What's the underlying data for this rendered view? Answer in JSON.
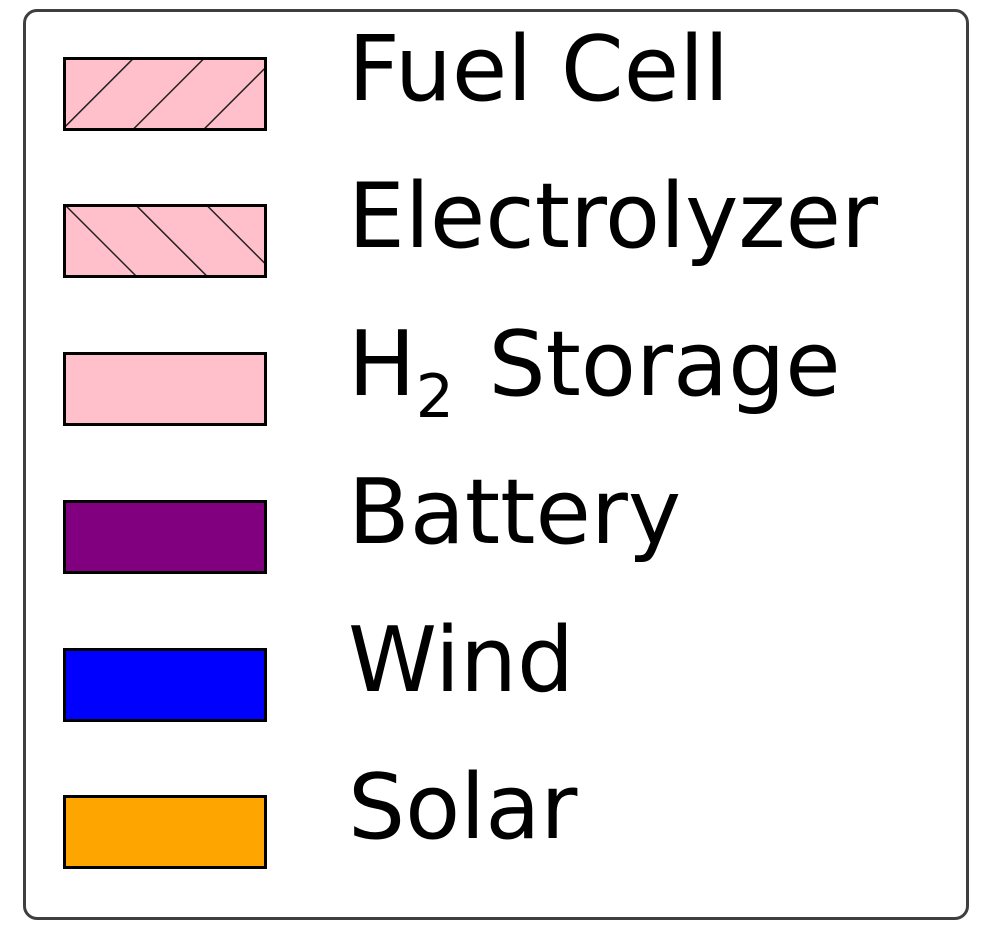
{
  "chart_data": {
    "type": "bar",
    "legend": {
      "placement": "full-frame",
      "entries": [
        {
          "label": "Fuel Cell",
          "color": "#ffc0cb",
          "hatch": "backslash"
        },
        {
          "label": "Electrolyzer",
          "color": "#ffc0cb",
          "hatch": "slash"
        },
        {
          "label_main": "H",
          "label_sub": "2",
          "label_rest": "Storage",
          "color": "#ffc0cb",
          "hatch": "none"
        },
        {
          "label": "Battery",
          "color": "#800080",
          "hatch": "none"
        },
        {
          "label": "Wind",
          "color": "#0000ff",
          "hatch": "none"
        },
        {
          "label": "Solar",
          "color": "#ffa500",
          "hatch": "none"
        }
      ]
    }
  }
}
